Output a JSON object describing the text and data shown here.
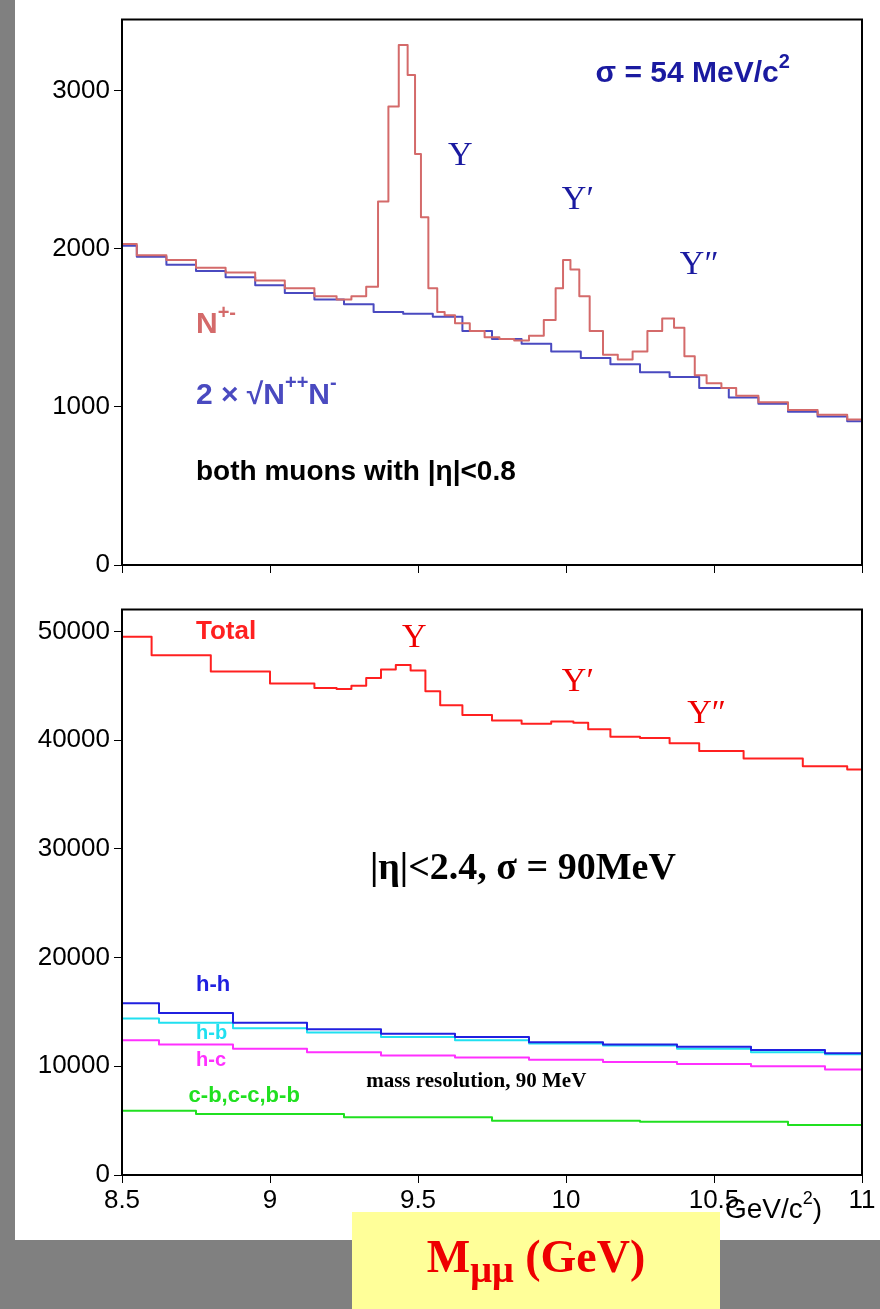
{
  "chart_data": [
    {
      "type": "step",
      "xlim": [
        8.5,
        11
      ],
      "xticks": [
        8.5,
        9,
        9.5,
        10,
        10.5,
        11
      ],
      "ylim": [
        0,
        3450
      ],
      "yticks": [
        0,
        1000,
        2000,
        3000
      ],
      "tick_labels": "y",
      "series": [
        {
          "name": "N$^{+-}$",
          "color": "#d46a6a",
          "x": [
            8.5,
            8.6,
            8.7,
            8.8,
            8.9,
            9.0,
            9.1,
            9.2,
            9.25,
            9.3,
            9.35,
            9.38,
            9.42,
            9.45,
            9.48,
            9.5,
            9.52,
            9.55,
            9.58,
            9.6,
            9.65,
            9.7,
            9.75,
            9.8,
            9.85,
            9.9,
            9.95,
            9.98,
            10.0,
            10.03,
            10.06,
            10.1,
            10.15,
            10.2,
            10.25,
            10.3,
            10.35,
            10.38,
            10.42,
            10.45,
            10.5,
            10.55,
            10.6,
            10.7,
            10.8,
            10.9,
            11.0
          ],
          "values": [
            2030,
            1960,
            1930,
            1880,
            1850,
            1800,
            1750,
            1700,
            1680,
            1700,
            1760,
            2300,
            2900,
            3290,
            3100,
            2600,
            2200,
            1750,
            1600,
            1580,
            1530,
            1480,
            1440,
            1430,
            1420,
            1450,
            1550,
            1750,
            1930,
            1870,
            1700,
            1480,
            1330,
            1300,
            1350,
            1480,
            1560,
            1500,
            1320,
            1200,
            1150,
            1120,
            1070,
            1030,
            980,
            950,
            920
          ]
        },
        {
          "name": "2 × √N$^{++}$N$^{-}$",
          "color": "#4a4ac0",
          "x": [
            8.5,
            8.6,
            8.7,
            8.8,
            8.9,
            9.0,
            9.1,
            9.2,
            9.3,
            9.4,
            9.5,
            9.6,
            9.7,
            9.8,
            9.9,
            10.0,
            10.1,
            10.2,
            10.3,
            10.4,
            10.5,
            10.6,
            10.7,
            10.8,
            10.9,
            11.0
          ],
          "values": [
            2020,
            1950,
            1900,
            1860,
            1820,
            1770,
            1720,
            1680,
            1650,
            1600,
            1590,
            1570,
            1480,
            1430,
            1400,
            1350,
            1310,
            1270,
            1220,
            1190,
            1120,
            1060,
            1020,
            970,
            940,
            910
          ]
        }
      ],
      "annotations": [
        "σ = 54 MeV/c$^{2}$",
        "both muons with |η|<0.8",
        "Υ",
        "Υ′",
        "Υ″"
      ]
    },
    {
      "type": "step",
      "xlim": [
        8.5,
        11
      ],
      "xticks": [
        8.5,
        9,
        9.5,
        10,
        10.5,
        11
      ],
      "ylim": [
        0,
        52000
      ],
      "yticks": [
        0,
        10000,
        20000,
        30000,
        40000,
        50000
      ],
      "xlabel": "M$_{μμ}$ (GeV)",
      "series": [
        {
          "name": "Total",
          "color": "#ff2020",
          "x": [
            8.5,
            8.7,
            8.9,
            9.1,
            9.2,
            9.25,
            9.3,
            9.35,
            9.4,
            9.45,
            9.5,
            9.55,
            9.6,
            9.7,
            9.8,
            9.9,
            10.0,
            10.05,
            10.1,
            10.2,
            10.3,
            10.4,
            10.5,
            10.7,
            10.9,
            11.0
          ],
          "values": [
            49500,
            47800,
            46300,
            45200,
            44800,
            44700,
            45000,
            45700,
            46500,
            46900,
            46400,
            44500,
            43200,
            42300,
            41800,
            41500,
            41700,
            41600,
            41000,
            40300,
            40200,
            39700,
            39000,
            38300,
            37600,
            37300
          ]
        },
        {
          "name": "h-h",
          "color": "#2020e0",
          "x": [
            8.5,
            8.75,
            9.0,
            9.25,
            9.5,
            9.75,
            10.0,
            10.25,
            10.5,
            10.75,
            11.0
          ],
          "values": [
            15800,
            14900,
            14000,
            13400,
            13000,
            12700,
            12200,
            12000,
            11800,
            11500,
            11200
          ]
        },
        {
          "name": "h-b",
          "color": "#20e0f0",
          "x": [
            8.5,
            8.75,
            9.0,
            9.25,
            9.5,
            9.75,
            10.0,
            10.25,
            10.5,
            10.75,
            11.0
          ],
          "values": [
            14400,
            14000,
            13500,
            13100,
            12700,
            12400,
            12100,
            11900,
            11600,
            11300,
            11100
          ]
        },
        {
          "name": "h-c",
          "color": "#ff30ff",
          "x": [
            8.5,
            8.75,
            9.0,
            9.25,
            9.5,
            9.75,
            10.0,
            10.25,
            10.5,
            10.75,
            11.0
          ],
          "values": [
            12400,
            12000,
            11600,
            11300,
            11000,
            10800,
            10600,
            10400,
            10200,
            10000,
            9700
          ]
        },
        {
          "name": "c-b,c-c,b-b",
          "color": "#20e020",
          "x": [
            8.5,
            9.0,
            9.5,
            10.0,
            10.5,
            11.0
          ],
          "values": [
            5900,
            5600,
            5300,
            5000,
            4900,
            4600
          ]
        }
      ],
      "annotations": [
        "|η|<2.4, σ = 90MeV",
        "mass resolution, 90 MeV",
        "GeV/c$^{2}$)",
        "Υ",
        "Υ′",
        "Υ″"
      ]
    }
  ]
}
